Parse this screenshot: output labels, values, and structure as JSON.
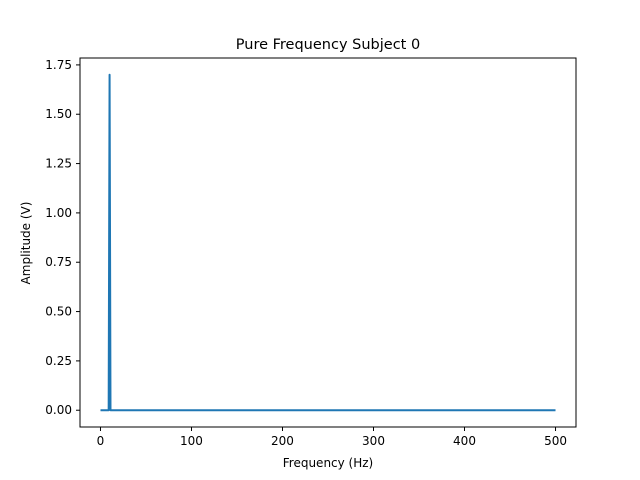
{
  "chart_data": {
    "type": "line",
    "title": "Pure Frequency Subject 0",
    "xlabel": "Frequency (Hz)",
    "ylabel": "Amplitude (V)",
    "xlim": [
      -22.5,
      522.5
    ],
    "ylim": [
      -0.085,
      1.785
    ],
    "xticks": [
      0,
      100,
      200,
      300,
      400,
      500
    ],
    "xtick_labels": [
      "0",
      "100",
      "200",
      "300",
      "400",
      "500"
    ],
    "yticks": [
      0.0,
      0.25,
      0.5,
      0.75,
      1.0,
      1.25,
      1.5,
      1.75
    ],
    "ytick_labels": [
      "0.00",
      "0.25",
      "0.50",
      "0.75",
      "1.00",
      "1.25",
      "1.50",
      "1.75"
    ],
    "grid": false,
    "series": [
      {
        "color": "#1f77b4",
        "x": [
          0,
          9,
          10,
          11,
          500
        ],
        "y": [
          0,
          0,
          1.7,
          0,
          0
        ]
      }
    ]
  }
}
